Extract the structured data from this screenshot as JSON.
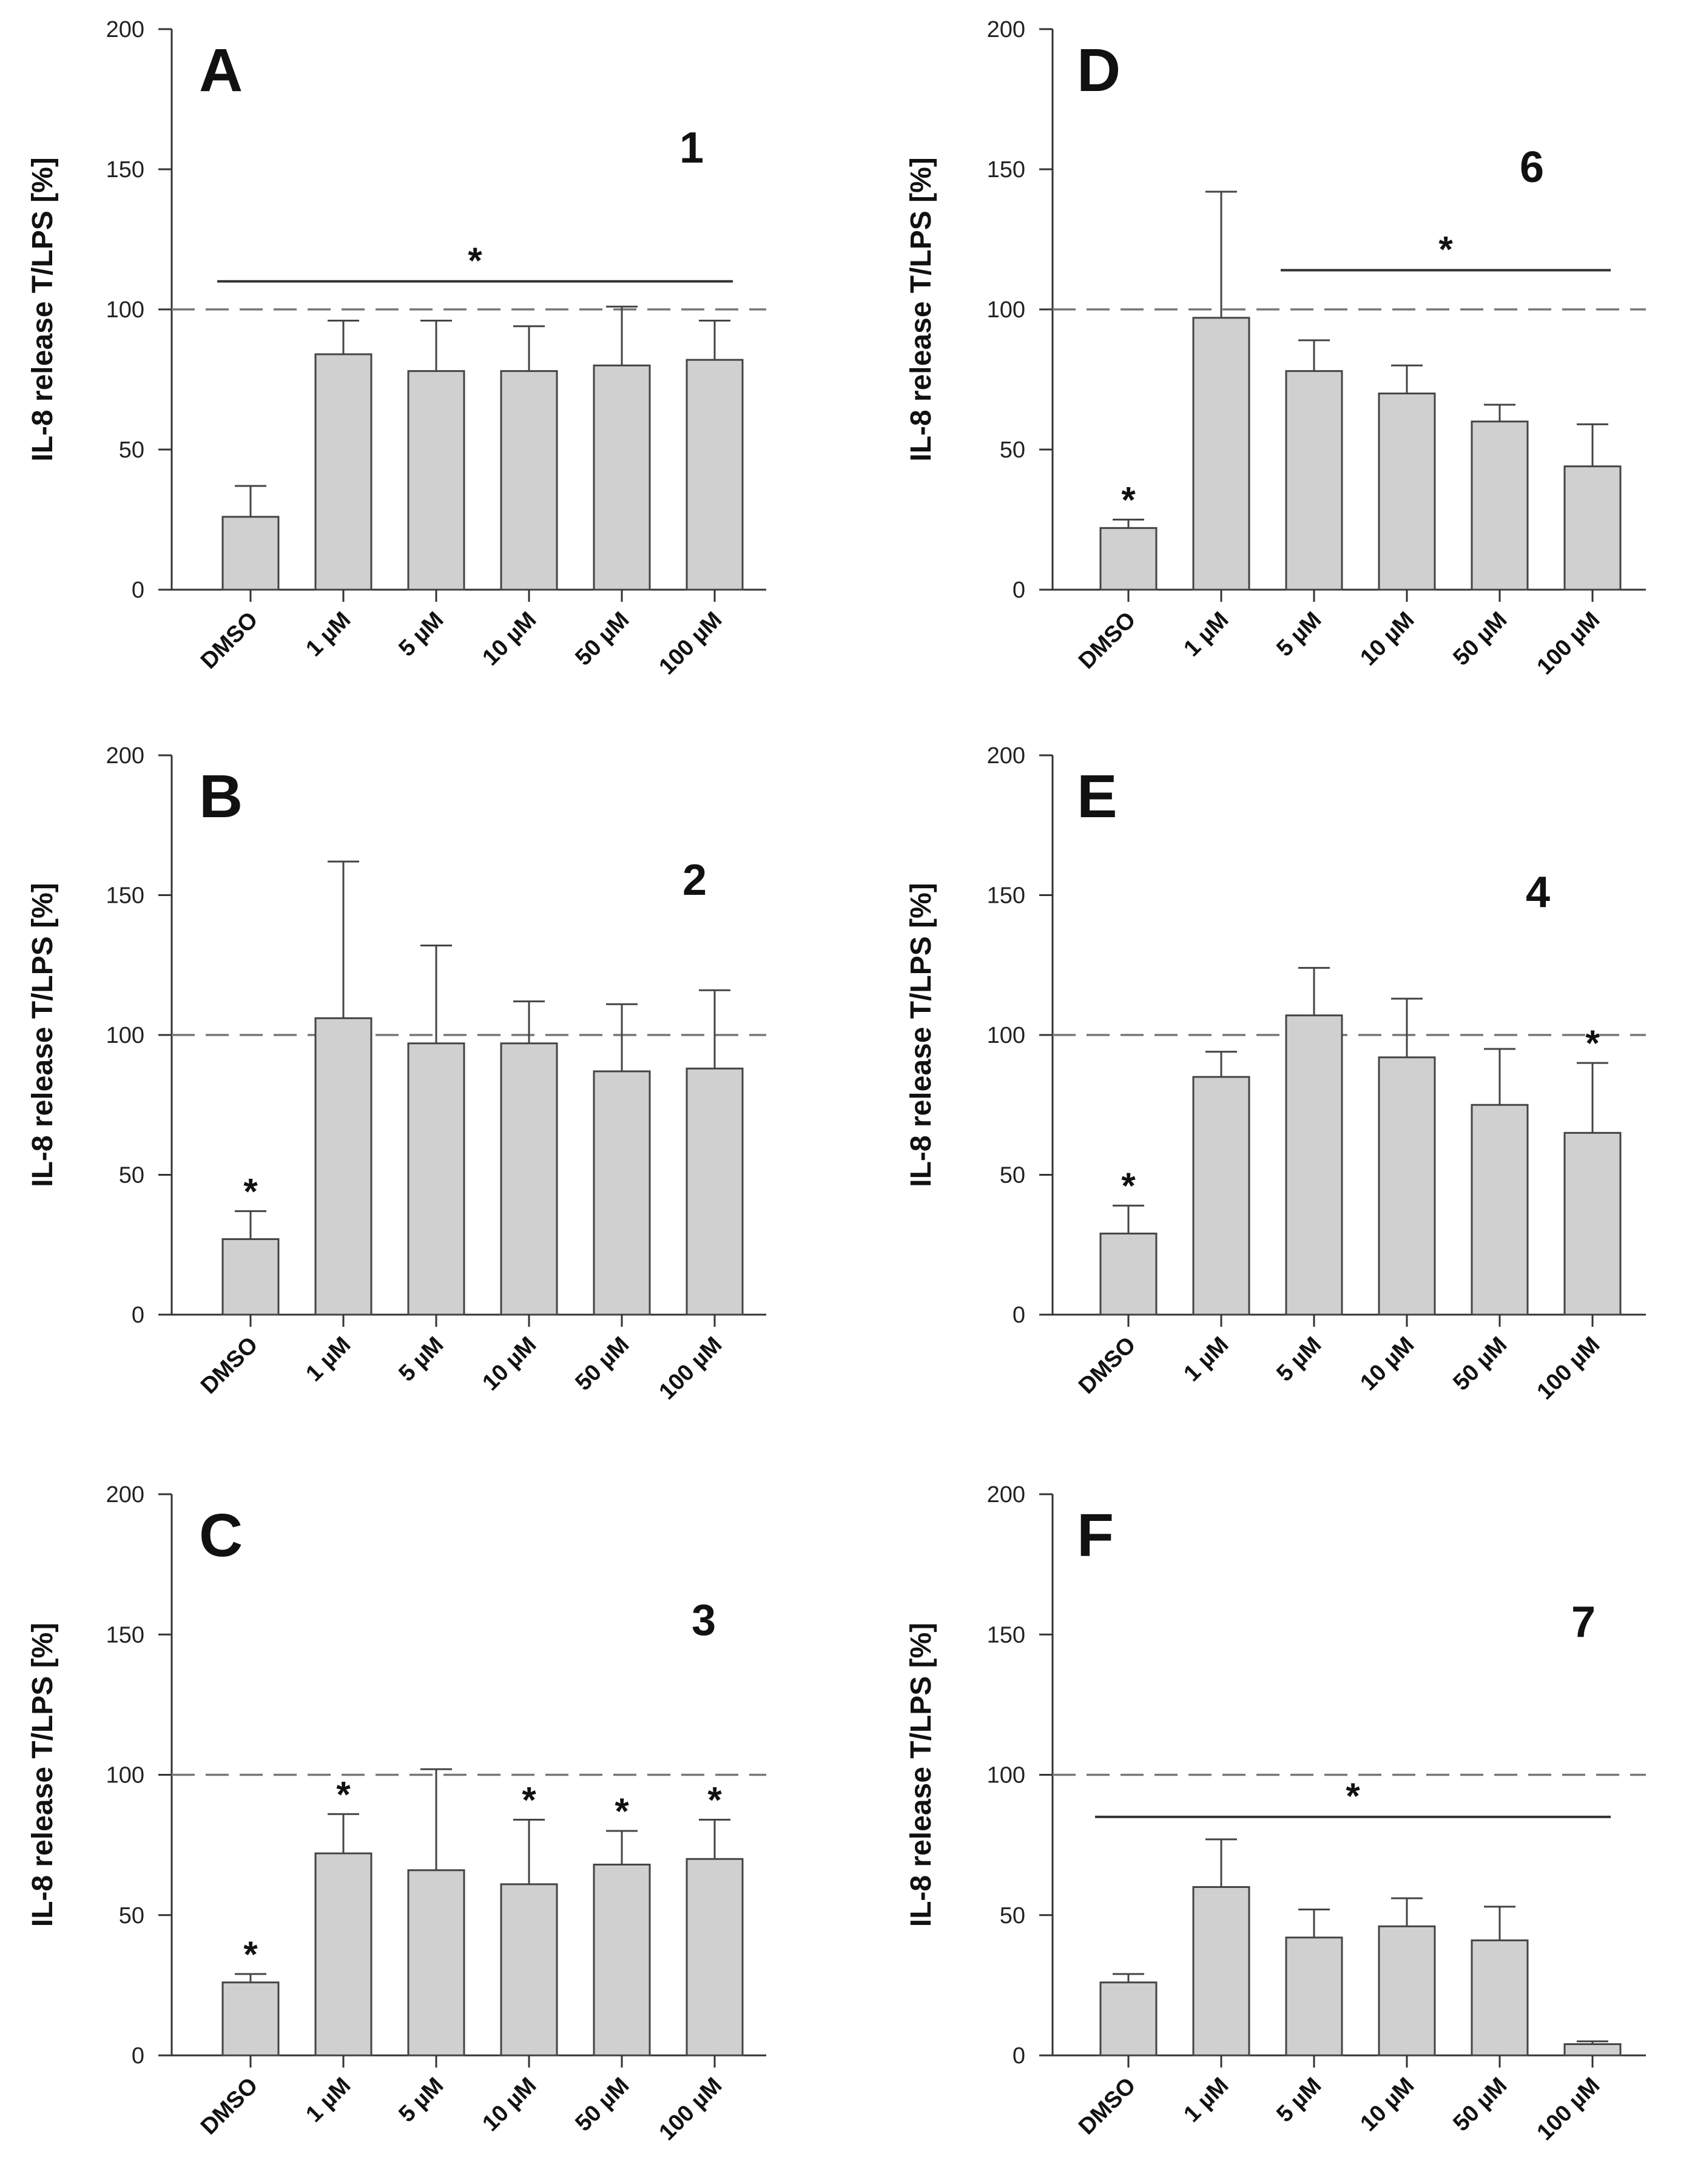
{
  "chart_data": [
    {
      "type": "bar",
      "panel": "A",
      "label": "1",
      "ylabel": "IL-8 release T/LPS [%]",
      "ylim": [
        0,
        200
      ],
      "yticks": [
        0,
        50,
        100,
        150,
        200
      ],
      "categories": [
        "DMSO",
        "1 µM",
        "5 µM",
        "10 µM",
        "50 µM",
        "100 µM"
      ],
      "values": [
        26,
        84,
        78,
        78,
        80,
        82
      ],
      "errors": [
        11,
        12,
        18,
        16,
        21,
        14
      ],
      "reference_line": 100,
      "bar_stars": [],
      "bracket": {
        "from": 0,
        "to": 5,
        "y": 110,
        "symbol": "*"
      }
    },
    {
      "type": "bar",
      "panel": "B",
      "label": "2",
      "ylabel": "IL-8 release T/LPS [%]",
      "ylim": [
        0,
        200
      ],
      "yticks": [
        0,
        50,
        100,
        150,
        200
      ],
      "categories": [
        "DMSO",
        "1 µM",
        "5 µM",
        "10 µM",
        "50 µM",
        "100 µM"
      ],
      "values": [
        27,
        106,
        97,
        97,
        87,
        88
      ],
      "errors": [
        10,
        56,
        35,
        15,
        24,
        28
      ],
      "reference_line": 100,
      "bar_stars": [
        0
      ],
      "bracket": null
    },
    {
      "type": "bar",
      "panel": "C",
      "label": "3",
      "ylabel": "IL-8 release T/LPS [%]",
      "ylim": [
        0,
        200
      ],
      "yticks": [
        0,
        50,
        100,
        150,
        200
      ],
      "categories": [
        "DMSO",
        "1 µM",
        "5 µM",
        "10 µM",
        "50 µM",
        "100 µM"
      ],
      "values": [
        26,
        72,
        66,
        61,
        68,
        70
      ],
      "errors": [
        3,
        14,
        36,
        23,
        12,
        14
      ],
      "reference_line": 100,
      "bar_stars": [
        0,
        1,
        3,
        4,
        5
      ],
      "bracket": null
    },
    {
      "type": "bar",
      "panel": "D",
      "label": "6",
      "ylabel": "IL-8 release T/LPS [%]",
      "ylim": [
        0,
        200
      ],
      "yticks": [
        0,
        50,
        100,
        150,
        200
      ],
      "categories": [
        "DMSO",
        "1 µM",
        "5 µM",
        "10 µM",
        "50 µM",
        "100 µM"
      ],
      "values": [
        22,
        97,
        78,
        70,
        60,
        44
      ],
      "errors": [
        3,
        45,
        11,
        10,
        6,
        15
      ],
      "reference_line": 100,
      "bar_stars": [
        0
      ],
      "bracket": {
        "from": 2,
        "to": 5,
        "y": 114,
        "symbol": "*"
      }
    },
    {
      "type": "bar",
      "panel": "E",
      "label": "4",
      "ylabel": "IL-8 release T/LPS [%]",
      "ylim": [
        0,
        200
      ],
      "yticks": [
        0,
        50,
        100,
        150,
        200
      ],
      "categories": [
        "DMSO",
        "1 µM",
        "5 µM",
        "10 µM",
        "50 µM",
        "100 µM"
      ],
      "values": [
        29,
        85,
        107,
        92,
        75,
        65
      ],
      "errors": [
        10,
        9,
        17,
        21,
        20,
        25
      ],
      "reference_line": 100,
      "bar_stars": [
        0,
        5
      ],
      "bracket": null
    },
    {
      "type": "bar",
      "panel": "F",
      "label": "7",
      "ylabel": "IL-8 release T/LPS [%]",
      "ylim": [
        0,
        200
      ],
      "yticks": [
        0,
        50,
        100,
        150,
        200
      ],
      "categories": [
        "DMSO",
        "1 µM",
        "5 µM",
        "10 µM",
        "50 µM",
        "100 µM"
      ],
      "values": [
        26,
        60,
        42,
        46,
        41,
        4
      ],
      "errors": [
        3,
        17,
        10,
        10,
        12,
        1
      ],
      "reference_line": 100,
      "bar_stars": [],
      "bracket": {
        "from": 0,
        "to": 5,
        "y": 85,
        "symbol": "*"
      }
    }
  ]
}
